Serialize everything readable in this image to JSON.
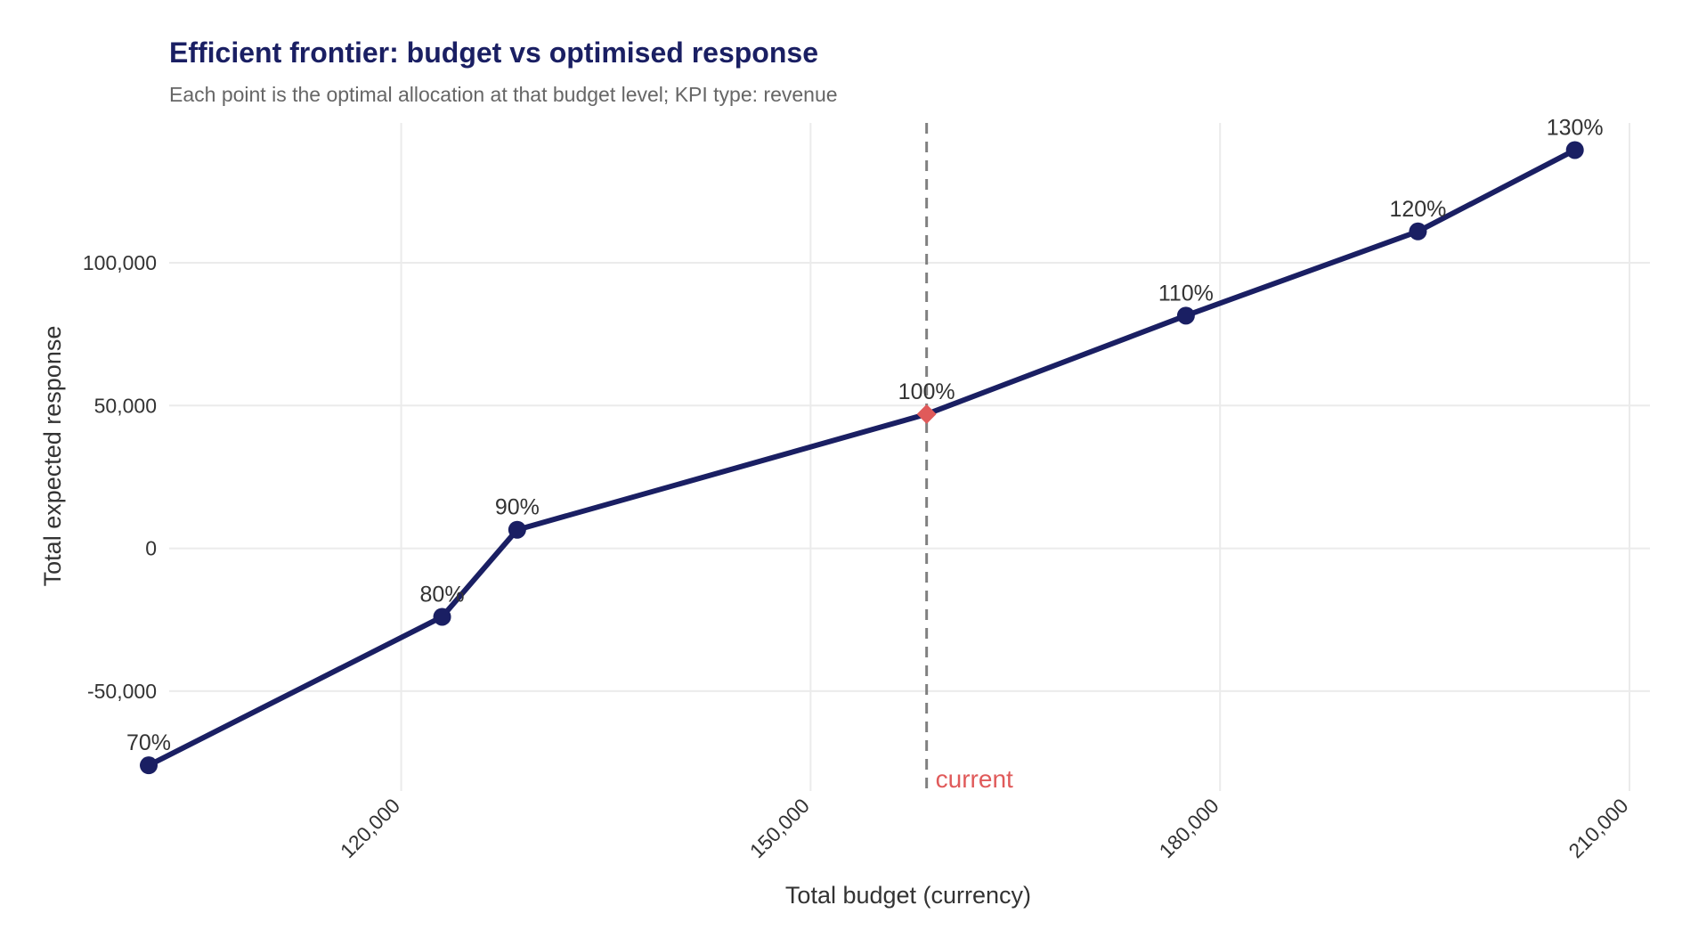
{
  "chart_data": {
    "type": "line",
    "title": "Efficient frontier: budget vs optimised response",
    "subtitle": "Each point is the optimal allocation at that budget level; KPI type: revenue",
    "xlabel": "Total budget (currency)",
    "ylabel": "Total expected response",
    "xlim": [
      103000,
      211500
    ],
    "ylim": [
      -85000,
      149000
    ],
    "x_ticks": [
      120000,
      150000,
      180000,
      210000
    ],
    "x_tick_labels": [
      "120,000",
      "150,000",
      "180,000",
      "210,000"
    ],
    "y_ticks": [
      -50000,
      0,
      50000,
      100000
    ],
    "y_tick_labels": [
      "-50,000",
      "0",
      "50,000",
      "100,000"
    ],
    "grid": true,
    "series": [
      {
        "color": "#1a1f63",
        "points": [
          {
            "x": 101500,
            "y": -76000,
            "label": "70%"
          },
          {
            "x": 123000,
            "y": -24000,
            "label": "80%"
          },
          {
            "x": 128500,
            "y": 6500,
            "label": "90%"
          },
          {
            "x": 158500,
            "y": 47000,
            "label": "100%",
            "current": true
          },
          {
            "x": 177500,
            "y": 81500,
            "label": "110%"
          },
          {
            "x": 194500,
            "y": 111000,
            "label": "120%"
          },
          {
            "x": 206000,
            "y": 139500,
            "label": "130%"
          }
        ]
      }
    ],
    "reference_line": {
      "x": 158500,
      "label": "current",
      "color": "#e05a5a",
      "line_color": "#808080",
      "style": "dashed"
    },
    "highlight_color": "#e05a5a"
  }
}
